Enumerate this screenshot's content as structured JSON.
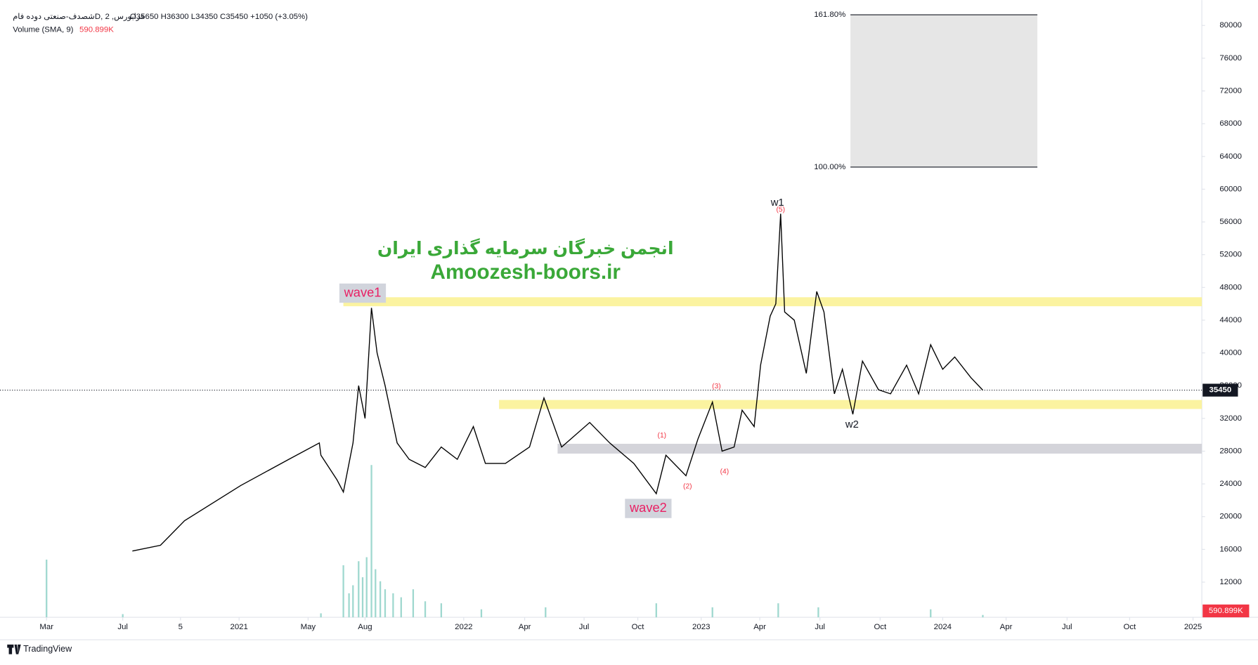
{
  "header": {
    "symbol": "شصدف-صنعتی دوده فامD, فرابورس, 2",
    "ohlc": "O35650 H36300 L34350 C35450 +1050 (+3.05%)",
    "volume_title": "Volume (SMA, 9)",
    "volume_value": "590.899K"
  },
  "chart_data": {
    "type": "line",
    "ylim": [
      7700,
      83100
    ],
    "yticks": [
      12000,
      16000,
      20000,
      24000,
      28000,
      32000,
      36000,
      40000,
      44000,
      48000,
      52000,
      56000,
      60000,
      64000,
      68000,
      72000,
      76000,
      80000
    ],
    "xlim": [
      0,
      1498
    ],
    "xticks": [
      {
        "value": 58,
        "label": "Mar"
      },
      {
        "value": 153,
        "label": "Jul"
      },
      {
        "value": 225,
        "label": "5"
      },
      {
        "value": 298,
        "label": "2021"
      },
      {
        "value": 384,
        "label": "May"
      },
      {
        "value": 455,
        "label": "Aug"
      },
      {
        "value": 578,
        "label": "2022"
      },
      {
        "value": 654,
        "label": "Apr"
      },
      {
        "value": 728,
        "label": "Jul"
      },
      {
        "value": 795,
        "label": "Oct"
      },
      {
        "value": 874,
        "label": "2023"
      },
      {
        "value": 947,
        "label": "Apr"
      },
      {
        "value": 1022,
        "label": "Jul"
      },
      {
        "value": 1097,
        "label": "Oct"
      },
      {
        "value": 1175,
        "label": "2024"
      },
      {
        "value": 1254,
        "label": "Apr"
      },
      {
        "value": 1330,
        "label": "Jul"
      },
      {
        "value": 1408,
        "label": "Oct"
      },
      {
        "value": 1487,
        "label": "2025"
      }
    ],
    "grid": false,
    "series": [
      {
        "name": "Price",
        "color": "#000000",
        "x": [
          165,
          200,
          230,
          300,
          360,
          398,
          400,
          420,
          428,
          435,
          440,
          447,
          455,
          463,
          470,
          480,
          495,
          510,
          530,
          550,
          570,
          590,
          605,
          630,
          660,
          678,
          700,
          735,
          760,
          790,
          818,
          830,
          855,
          870,
          888,
          900,
          915,
          925,
          940,
          948,
          960,
          967,
          973,
          978,
          990,
          1005,
          1018,
          1027,
          1040,
          1050,
          1063,
          1075,
          1095,
          1110,
          1130,
          1145,
          1160,
          1175,
          1190,
          1210,
          1225
        ],
        "values": [
          15800,
          16500,
          19500,
          23800,
          27000,
          29000,
          27500,
          24500,
          23000,
          26500,
          29000,
          36000,
          32000,
          45500,
          40000,
          36000,
          29000,
          27000,
          26000,
          28500,
          27000,
          31000,
          26500,
          26500,
          28500,
          34500,
          28500,
          31500,
          29000,
          26500,
          22800,
          27500,
          25000,
          29500,
          34000,
          28000,
          28500,
          33000,
          31000,
          38500,
          44500,
          46000,
          57000,
          45000,
          44000,
          37500,
          47500,
          45000,
          35000,
          38000,
          32500,
          39000,
          35500,
          35000,
          38500,
          35000,
          41000,
          38000,
          39500,
          37000,
          35450
        ]
      }
    ],
    "last_price": {
      "value": 35450,
      "label": "35450"
    },
    "volume": {
      "color": "#9fd8cf",
      "vlim": [
        0,
        50000000
      ],
      "x": [
        58,
        153,
        400,
        428,
        435,
        440,
        447,
        452,
        457,
        463,
        468,
        474,
        480,
        490,
        500,
        515,
        530,
        550,
        600,
        680,
        818,
        888,
        970,
        1020,
        1160,
        1225
      ],
      "values": [
        14400000,
        800000,
        1000000,
        13000000,
        6000000,
        8000000,
        14000000,
        10000000,
        15000000,
        38000000,
        12000000,
        9000000,
        7000000,
        6000000,
        5000000,
        7000000,
        4000000,
        3500000,
        2000000,
        2500000,
        3500000,
        2500000,
        3500000,
        2500000,
        2000000,
        590899
      ],
      "last": {
        "value": 590899,
        "label": "590.899K"
      }
    },
    "zones": [
      {
        "lo": 45700,
        "hi": 46800,
        "x0": 428,
        "x1": 1498,
        "color": "#fbf3a0"
      },
      {
        "lo": 33150,
        "hi": 34250,
        "x0": 622,
        "x1": 1498,
        "color": "#fbf3a0"
      },
      {
        "lo": 27700,
        "hi": 28900,
        "x0": 695,
        "x1": 1498,
        "color": "#d4d4da"
      }
    ],
    "fib": {
      "x0": 1060,
      "x1": 1293,
      "color": "#e6e6e6",
      "levels": [
        {
          "value": 81300,
          "label": "161.80%"
        },
        {
          "value": 62700,
          "label": "100.00%"
        }
      ]
    },
    "annotations": [
      {
        "text": "wave1",
        "x": 452,
        "y": 47300,
        "kind": "wave"
      },
      {
        "text": "wave2",
        "x": 808,
        "y": 21000,
        "kind": "wave"
      },
      {
        "text": "w1",
        "x": 969,
        "y": 58300,
        "kind": "w"
      },
      {
        "text": "w2",
        "x": 1062,
        "y": 31200,
        "kind": "w"
      },
      {
        "text": "(1)",
        "x": 825,
        "y": 29900,
        "kind": "count"
      },
      {
        "text": "(2)",
        "x": 857,
        "y": 23700,
        "kind": "count"
      },
      {
        "text": "(3)",
        "x": 893,
        "y": 35900,
        "kind": "count"
      },
      {
        "text": "(4)",
        "x": 903,
        "y": 25500,
        "kind": "count"
      },
      {
        "text": "(5)",
        "x": 973,
        "y": 57500,
        "kind": "count"
      }
    ],
    "watermark": [
      "انجمن خبرگان سرمایه گذاری ایران",
      "Amoozesh-boors.ir"
    ],
    "brand": "TradingView"
  }
}
